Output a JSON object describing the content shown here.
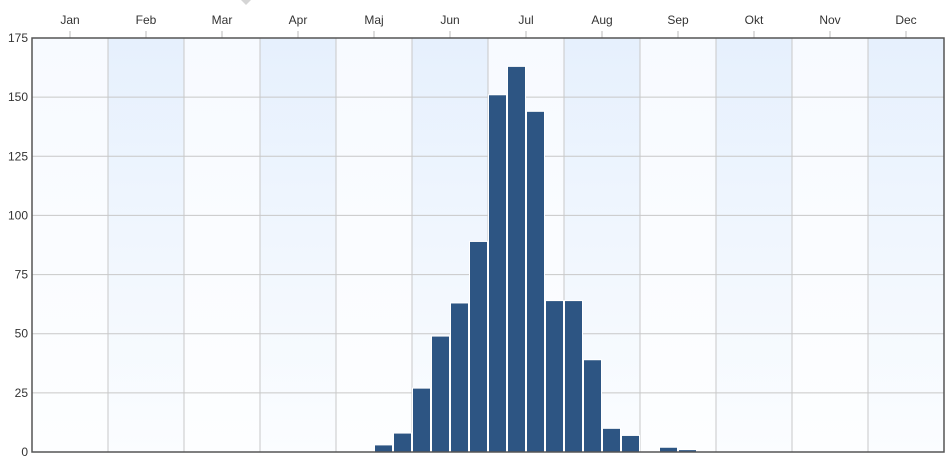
{
  "chart_data": {
    "type": "bar",
    "months": [
      "Jan",
      "Feb",
      "Mar",
      "Apr",
      "Maj",
      "Jun",
      "Jul",
      "Aug",
      "Sep",
      "Okt",
      "Nov",
      "Dec"
    ],
    "weeks_per_month": 4,
    "values": [
      0,
      0,
      0,
      0,
      0,
      0,
      0,
      0,
      0,
      0,
      0,
      0,
      0,
      0,
      0,
      0,
      0,
      0,
      3,
      8,
      27,
      49,
      63,
      89,
      151,
      163,
      144,
      64,
      64,
      39,
      10,
      7,
      0,
      2,
      1,
      0,
      0,
      0,
      0,
      0,
      0,
      0,
      0,
      0,
      0,
      0,
      0,
      0
    ],
    "ylim": [
      0,
      175
    ],
    "y_ticks": [
      0,
      25,
      50,
      75,
      100,
      125,
      150,
      175
    ],
    "grid": true,
    "colors": {
      "bar": "#2d5583",
      "band_light": "#fafcff",
      "band_blue": "#e6f0fd",
      "axis": "#555555"
    }
  }
}
